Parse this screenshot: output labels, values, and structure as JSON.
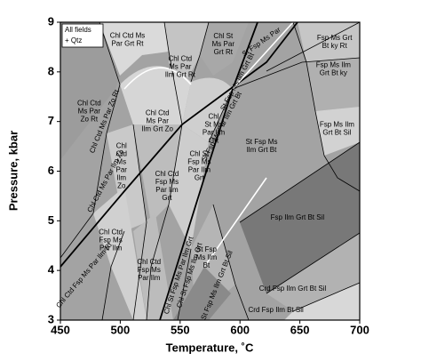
{
  "chart_data": {
    "type": "phase-diagram",
    "xlabel": "Temperature, ˚C",
    "ylabel": "Pressure, kbar",
    "xlim": [
      450,
      700
    ],
    "ylim": [
      3,
      9
    ],
    "xticks": [
      450,
      500,
      550,
      600,
      650,
      700
    ],
    "yticks": [
      3,
      4,
      5,
      6,
      7,
      8,
      9
    ],
    "legend_note": [
      "All fields",
      "+ Qtz"
    ],
    "fields": [
      {
        "lines": [
          "Chl Ctd Ms",
          "Par Grt Rt"
        ],
        "x": 506,
        "y": 8.64
      },
      {
        "lines": [
          "Chl St",
          "Ms Par",
          "Grt Rt"
        ],
        "x": 586,
        "y": 8.55
      },
      {
        "lines": [
          "Chl Ctd",
          "Ms Par",
          "Ilm Grt Rt"
        ],
        "x": 550,
        "y": 8.1
      },
      {
        "lines": [
          "Chl Ctd",
          "Ms Par",
          "Zo Rt"
        ],
        "x": 474,
        "y": 7.2
      },
      {
        "lines": [
          "Chl Ctd",
          "Ms Par",
          "Ilm Grt Zo"
        ],
        "x": 531,
        "y": 7.0
      },
      {
        "lines": [
          "Chl",
          "St Ms",
          "Par Ilm",
          "Grt"
        ],
        "x": 578,
        "y": 6.85
      },
      {
        "lines": [
          "Chl",
          "Ctd",
          "Ms",
          "Par",
          "Ilm",
          "Zo"
        ],
        "x": 501,
        "y": 6.1
      },
      {
        "lines": [
          "Chl St",
          "Fsp Ms",
          "Par Ilm",
          "Grt"
        ],
        "x": 566,
        "y": 6.1
      },
      {
        "lines": [
          "Chl Ctd",
          "Fsp Ms",
          "Par Ilm",
          "Grt"
        ],
        "x": 539,
        "y": 5.7
      },
      {
        "lines": [
          "St Fsp Ms",
          "Ilm Grt Bt"
        ],
        "x": 618,
        "y": 6.5
      },
      {
        "lines": [
          "Fsp Ms Grt",
          "Bt ky Rt"
        ],
        "x": 679,
        "y": 8.6
      },
      {
        "lines": [
          "Fsp Ms Ilm",
          "Grt Bt ky"
        ],
        "x": 678,
        "y": 8.05
      },
      {
        "lines": [
          "Fsp Ms Ilm",
          "Grt Bt Sil"
        ],
        "x": 681,
        "y": 6.85
      },
      {
        "lines": [
          "Fsp Ilm Grt Bt Sil"
        ],
        "x": 648,
        "y": 5.06
      },
      {
        "lines": [
          "Chl Ctd",
          "Fsp Ms",
          "Par Ilm"
        ],
        "x": 492,
        "y": 4.6
      },
      {
        "lines": [
          "Chl Ctd",
          "Fsp Ms",
          "Par Ilm"
        ],
        "x": 524,
        "y": 4.0
      },
      {
        "lines": [
          "St Fsp",
          "Ms Ilm",
          "Bt"
        ],
        "x": 572,
        "y": 4.25
      },
      {
        "lines": [
          "Crd Fsp Ilm Grt Bt Sil"
        ],
        "x": 644,
        "y": 3.63
      },
      {
        "lines": [
          "Crd Fsp Ilm Bt Sil"
        ],
        "x": 630,
        "y": 3.2
      }
    ],
    "line_labels": [
      {
        "text": "Chl Ctd Ms Par Zo Rt",
        "x": 487,
        "y": 7.0
      },
      {
        "text": "Chl Ctd Ms Par Ilm Zo",
        "x": 488,
        "y": 5.8
      },
      {
        "text": "Chl Ctd Fsp Ms Par Ilm Rt",
        "x": 470,
        "y": 3.9
      },
      {
        "text": "Chl St Fsp Ms Par Ilm Grt",
        "x": 549,
        "y": 3.9
      },
      {
        "text": "Chl St Fsp Ms Ilm Grt",
        "x": 558,
        "y": 3.9
      },
      {
        "text": "St Fsp Ms Ilm Grt Bt Sil",
        "x": 581,
        "y": 3.7
      },
      {
        "text": "St Fsp Ms Par Ilm Grt Bt",
        "x": 585,
        "y": 6.9
      },
      {
        "text": "St Fsp Ms Ilm Grt Bt",
        "x": 598,
        "y": 7.8
      },
      {
        "text": "St Fsp Ms Par",
        "x": 618,
        "y": 8.6
      }
    ]
  }
}
